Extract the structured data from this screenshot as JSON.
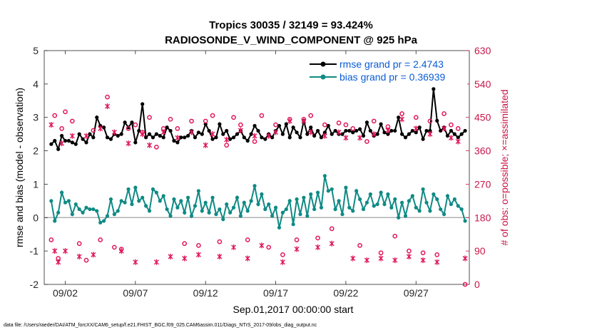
{
  "chart_data": {
    "type": "line",
    "title": "Tropics 30035 / 32149 = 93.424%",
    "subtitle": "RADIOSONDE_V_WIND_COMPONENT @ 925 hPa",
    "xlabel": "Sep.01,2017 00:00:00 start",
    "ylabel": "rmse and bias (model - observation)",
    "ylabel_right": "# of obs: o=possible; ×=assimilated",
    "xlim": [
      0.5,
      30.8
    ],
    "ylim": [
      -2,
      5
    ],
    "ylim_right": [
      0,
      630
    ],
    "x_ticks": [
      2,
      7,
      12,
      17,
      22,
      27
    ],
    "x_tick_labels": [
      "09/02",
      "09/07",
      "09/12",
      "09/17",
      "09/22",
      "09/27"
    ],
    "y_ticks": [
      -2,
      -1,
      0,
      1,
      2,
      3,
      4,
      5
    ],
    "y_ticks_right": [
      0,
      90,
      180,
      270,
      360,
      450,
      540,
      630
    ],
    "grid": false,
    "legend_position": "top-right",
    "footnote": "data file: /Users/raeder/DAI/ATM_forcXX/CAM6_setup/f.e21.FHIST_BGC.f09_025.CAM6assim.011/Diags_NTrS_2017-09/obs_diag_output.nc",
    "series": [
      {
        "name": "rmse grand pr = 2.4743",
        "color": "#000000",
        "marker": "dot",
        "x": [
          1.0,
          1.25,
          1.5,
          1.75,
          2.0,
          2.25,
          2.5,
          2.75,
          3.0,
          3.25,
          3.5,
          3.75,
          4.0,
          4.25,
          4.5,
          4.75,
          5.0,
          5.25,
          5.5,
          5.75,
          6.0,
          6.25,
          6.5,
          6.75,
          7.0,
          7.25,
          7.5,
          7.75,
          8.0,
          8.25,
          8.5,
          8.75,
          9.0,
          9.25,
          9.5,
          9.75,
          10.0,
          10.25,
          10.5,
          10.75,
          11.0,
          11.25,
          11.5,
          11.75,
          12.0,
          12.25,
          12.5,
          12.75,
          13.0,
          13.25,
          13.5,
          13.75,
          14.0,
          14.25,
          14.5,
          14.75,
          15.0,
          15.25,
          15.5,
          15.75,
          16.0,
          16.25,
          16.5,
          16.75,
          17.0,
          17.25,
          17.5,
          17.75,
          18.0,
          18.25,
          18.5,
          18.75,
          19.0,
          19.25,
          19.5,
          19.75,
          20.0,
          20.25,
          20.5,
          20.75,
          21.0,
          21.25,
          21.5,
          21.75,
          22.0,
          22.25,
          22.5,
          22.75,
          23.0,
          23.25,
          23.5,
          23.75,
          24.0,
          24.25,
          24.5,
          24.75,
          25.0,
          25.25,
          25.5,
          25.75,
          26.0,
          26.25,
          26.5,
          26.75,
          27.0,
          27.25,
          27.5,
          27.75,
          28.0,
          28.25,
          28.5,
          28.75,
          29.0,
          29.25,
          29.5,
          29.75,
          30.0,
          30.25,
          30.5
        ],
        "values": [
          2.2,
          2.3,
          2.05,
          2.45,
          2.3,
          2.3,
          2.25,
          2.2,
          2.5,
          2.35,
          2.25,
          2.5,
          2.4,
          3.0,
          2.75,
          2.7,
          2.4,
          2.35,
          2.5,
          2.45,
          2.5,
          2.85,
          2.7,
          2.85,
          2.25,
          2.6,
          3.4,
          2.4,
          2.5,
          2.4,
          2.5,
          2.45,
          2.4,
          2.7,
          2.6,
          2.3,
          2.25,
          2.4,
          2.4,
          2.45,
          2.6,
          2.4,
          2.55,
          2.5,
          2.8,
          2.6,
          2.35,
          2.4,
          2.8,
          2.5,
          2.6,
          2.35,
          2.4,
          2.5,
          2.6,
          2.4,
          2.3,
          2.5,
          2.75,
          2.6,
          2.4,
          2.35,
          2.5,
          2.4,
          2.6,
          2.75,
          2.5,
          2.8,
          2.4,
          2.7,
          2.55,
          2.4,
          2.9,
          2.5,
          2.7,
          2.45,
          2.6,
          2.4,
          2.55,
          2.75,
          2.5,
          2.6,
          2.5,
          2.5,
          2.6,
          2.6,
          2.55,
          2.6,
          2.65,
          2.45,
          2.85,
          2.6,
          2.45,
          2.5,
          2.8,
          2.55,
          2.5,
          2.6,
          2.6,
          3.0,
          2.5,
          2.4,
          2.5,
          2.6,
          2.55,
          2.7,
          2.35,
          2.6,
          2.6,
          3.85,
          2.9,
          2.6,
          2.7,
          2.45,
          2.6,
          2.5,
          2.4,
          2.5,
          2.6
        ]
      },
      {
        "name": "bias grand pr = 0.36939",
        "color": "#0f8a84",
        "marker": "dot",
        "x": [
          1.0,
          1.25,
          1.5,
          1.75,
          2.0,
          2.25,
          2.5,
          2.75,
          3.0,
          3.25,
          3.5,
          3.75,
          4.0,
          4.25,
          4.5,
          4.75,
          5.0,
          5.25,
          5.5,
          5.75,
          6.0,
          6.25,
          6.5,
          6.75,
          7.0,
          7.25,
          7.5,
          7.75,
          8.0,
          8.25,
          8.5,
          8.75,
          9.0,
          9.25,
          9.5,
          9.75,
          10.0,
          10.25,
          10.5,
          10.75,
          11.0,
          11.25,
          11.5,
          11.75,
          12.0,
          12.25,
          12.5,
          12.75,
          13.0,
          13.25,
          13.5,
          13.75,
          14.0,
          14.25,
          14.5,
          14.75,
          15.0,
          15.25,
          15.5,
          15.75,
          16.0,
          16.25,
          16.5,
          16.75,
          17.0,
          17.25,
          17.5,
          17.75,
          18.0,
          18.25,
          18.5,
          18.75,
          19.0,
          19.25,
          19.5,
          19.75,
          20.0,
          20.25,
          20.5,
          20.75,
          21.0,
          21.25,
          21.5,
          21.75,
          22.0,
          22.25,
          22.5,
          22.75,
          23.0,
          23.25,
          23.5,
          23.75,
          24.0,
          24.25,
          24.5,
          24.75,
          25.0,
          25.25,
          25.5,
          25.75,
          26.0,
          26.25,
          26.5,
          26.75,
          27.0,
          27.25,
          27.5,
          27.75,
          28.0,
          28.25,
          28.5,
          28.75,
          29.0,
          29.25,
          29.5,
          29.75,
          30.0,
          30.25,
          30.5
        ],
        "values": [
          0.5,
          -0.1,
          0.15,
          0.75,
          0.45,
          0.5,
          0.1,
          0.4,
          0.25,
          0.15,
          0.3,
          0.25,
          0.25,
          0.2,
          -0.15,
          -0.1,
          0.05,
          0.55,
          0.1,
          0.2,
          0.5,
          0.45,
          0.85,
          0.4,
          0.9,
          0.5,
          0.6,
          0.35,
          0.2,
          0.85,
          0.75,
          0.5,
          0.65,
          0.25,
          0.05,
          0.55,
          0.3,
          0.5,
          0.15,
          0.6,
          0.05,
          0.35,
          0.8,
          0.2,
          0.45,
          0.15,
          0.6,
          0.1,
          0.25,
          -0.05,
          0.4,
          0.15,
          0.3,
          0.6,
          0.05,
          0.45,
          0.2,
          0.5,
          0.95,
          0.4,
          0.7,
          0.25,
          0.4,
          0.05,
          0.3,
          -0.3,
          0.15,
          0.25,
          0.5,
          -0.2,
          0.55,
          0.1,
          0.6,
          0.05,
          0.7,
          0.25,
          0.75,
          0.3,
          1.25,
          0.8,
          0.85,
          0.25,
          0.5,
          0.1,
          0.9,
          0.3,
          0.2,
          0.8,
          0.55,
          0.25,
          0.45,
          0.7,
          0.35,
          0.4,
          0.75,
          0.4,
          0.7,
          0.3,
          0.55,
          0.0,
          0.45,
          0.05,
          0.5,
          0.65,
          0.3,
          0.2,
          0.85,
          0.45,
          0.2,
          0.7,
          0.55,
          0.25,
          0.1,
          0.65,
          0.4,
          0.55,
          0.35,
          0.25,
          -0.1
        ]
      }
    ],
    "obs_possible": {
      "name": "possible (o)",
      "color": "#e0165c",
      "x": [
        1.0,
        1.25,
        1.5,
        1.75,
        2.0,
        2.5,
        3.0,
        3.5,
        4.0,
        4.5,
        5.0,
        5.5,
        6.0,
        6.5,
        7.0,
        7.5,
        8.0,
        8.5,
        9.0,
        9.5,
        10.0,
        10.5,
        11.0,
        11.5,
        12.0,
        12.5,
        13.0,
        13.5,
        14.0,
        14.5,
        15.0,
        15.5,
        16.0,
        16.5,
        17.0,
        17.5,
        18.0,
        18.5,
        19.0,
        19.5,
        20.0,
        20.5,
        21.0,
        21.5,
        22.0,
        22.5,
        23.0,
        23.5,
        24.0,
        24.5,
        25.0,
        25.5,
        26.0,
        26.5,
        27.0,
        27.5,
        28.0,
        28.5,
        29.0,
        29.5,
        30.0,
        30.5
      ],
      "values": [
        120,
        455,
        70,
        420,
        465,
        440,
        110,
        65,
        415,
        120,
        505,
        100,
        95,
        420,
        430,
        410,
        450,
        370,
        420,
        445,
        420,
        110,
        440,
        105,
        440,
        455,
        115,
        375,
        450,
        430,
        120,
        385,
        455,
        100,
        430,
        80,
        445,
        120,
        445,
        455,
        125,
        430,
        150,
        435,
        430,
        420,
        105,
        385,
        440,
        85,
        425,
        130,
        460,
        90,
        450,
        85,
        440,
        80,
        460,
        430,
        420,
        0
      ]
    },
    "obs_assimilated": {
      "name": "assimilated (×)",
      "color": "#e0165c",
      "x": [
        1.0,
        1.25,
        1.5,
        1.75,
        2.0,
        2.5,
        3.0,
        3.5,
        4.0,
        4.5,
        5.0,
        5.5,
        6.0,
        6.5,
        7.0,
        7.5,
        8.0,
        8.5,
        9.0,
        9.5,
        10.0,
        10.5,
        11.0,
        11.5,
        12.0,
        12.5,
        13.0,
        13.5,
        14.0,
        14.5,
        15.0,
        15.5,
        16.0,
        16.5,
        17.0,
        17.5,
        18.0,
        18.5,
        19.0,
        19.5,
        20.0,
        20.5,
        21.0,
        21.5,
        22.0,
        22.5,
        23.0,
        23.5,
        24.0,
        24.5,
        25.0,
        25.5,
        26.0,
        26.5,
        27.0,
        27.5,
        28.0,
        28.5,
        29.0,
        29.5,
        30.0,
        30.5
      ],
      "values": [
        430,
        90,
        60,
        380,
        90,
        400,
        75,
        400,
        80,
        420,
        480,
        410,
        90,
        380,
        60,
        405,
        375,
        60,
        410,
        75,
        395,
        70,
        410,
        80,
        375,
        405,
        75,
        390,
        100,
        415,
        70,
        400,
        105,
        400,
        410,
        60,
        440,
        95,
        440,
        410,
        100,
        400,
        110,
        410,
        395,
        70,
        395,
        65,
        405,
        70,
        415,
        65,
        445,
        75,
        420,
        65,
        405,
        60,
        420,
        395,
        385,
        70
      ]
    }
  }
}
